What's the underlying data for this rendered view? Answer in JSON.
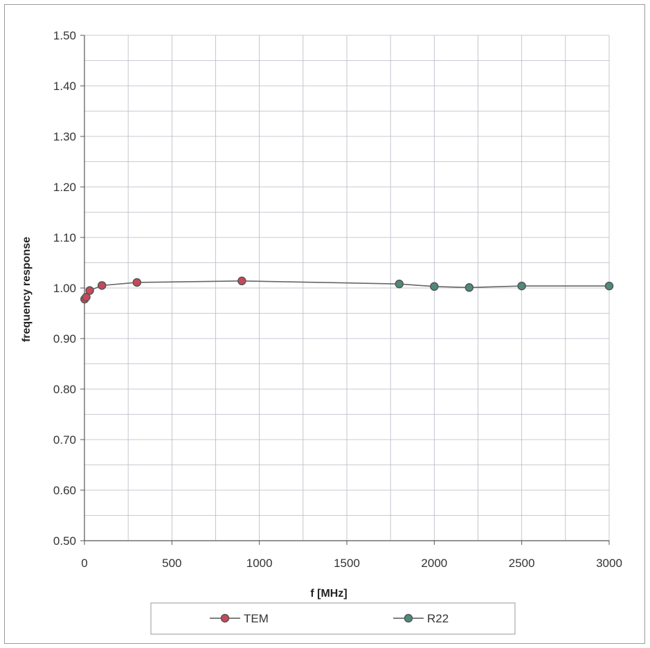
{
  "chart_data": {
    "type": "line",
    "title": "",
    "xlabel": "f [MHz]",
    "ylabel": "frequency response",
    "xlim": [
      0,
      3000
    ],
    "ylim": [
      0.5,
      1.5
    ],
    "x_ticks": [
      "0",
      "500",
      "1000",
      "1500",
      "2000",
      "2500",
      "3000"
    ],
    "y_ticks": [
      "0.50",
      "0.60",
      "0.70",
      "0.80",
      "0.90",
      "1.00",
      "1.10",
      "1.20",
      "1.30",
      "1.40",
      "1.50"
    ],
    "grid": true,
    "legend_position": "bottom",
    "series": [
      {
        "name": "TEM",
        "color": "#c8485a",
        "x": [
          1,
          10,
          30,
          100,
          300,
          900
        ],
        "y": [
          0.978,
          0.982,
          0.995,
          1.005,
          1.011,
          1.014
        ]
      },
      {
        "name": "R22",
        "color": "#4e8a7c",
        "x": [
          1800,
          2000,
          2200,
          2500,
          3000
        ],
        "y": [
          1.008,
          1.003,
          1.001,
          1.004,
          1.004
        ]
      }
    ]
  }
}
